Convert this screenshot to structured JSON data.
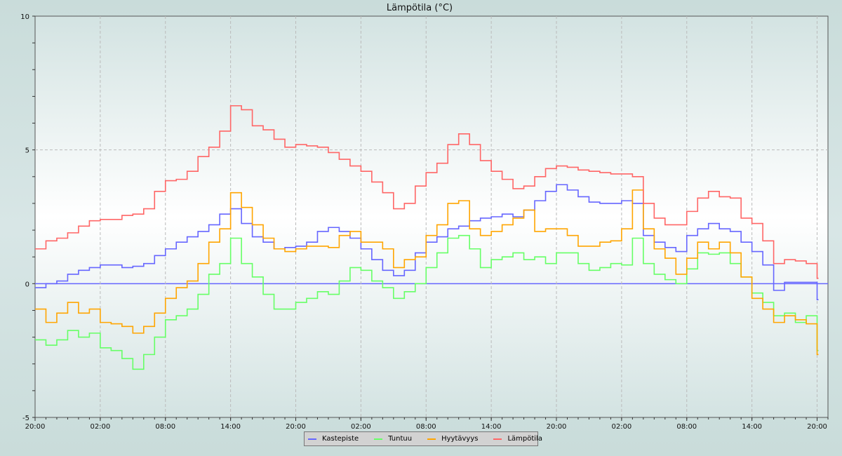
{
  "chart_data": {
    "type": "line",
    "title": "Lämpötila (°C)",
    "xlabel": "",
    "ylabel": "",
    "ylim": [
      -5,
      10
    ],
    "yticks": [
      "10",
      "5",
      "0",
      "-5"
    ],
    "xlim_hours": [
      0,
      73
    ],
    "xticks": [
      "20:00",
      "02:00",
      "08:00",
      "14:00",
      "20:00",
      "02:00",
      "08:00",
      "14:00",
      "20:00",
      "02:00",
      "08:00",
      "14:00",
      "20:00"
    ],
    "x_unit": "hours since first 20:00 (hourly samples)",
    "grid": true,
    "legend_position": "bottom-center",
    "series": [
      {
        "name": "Kastepiste",
        "color": "#6666ff",
        "values": [
          -0.15,
          0,
          0.1,
          0.35,
          0.5,
          0.6,
          0.7,
          0.7,
          0.6,
          0.65,
          0.75,
          1.05,
          1.3,
          1.55,
          1.75,
          1.95,
          2.2,
          2.6,
          2.8,
          2.25,
          1.75,
          1.55,
          1.3,
          1.35,
          1.4,
          1.55,
          1.95,
          2.1,
          1.95,
          1.7,
          1.3,
          0.9,
          0.5,
          0.3,
          0.5,
          1.15,
          1.55,
          1.75,
          2.05,
          2.15,
          2.35,
          2.45,
          2.5,
          2.6,
          2.5,
          2.75,
          3.1,
          3.45,
          3.7,
          3.5,
          3.25,
          3.05,
          3.0,
          3.0,
          3.1,
          3.0,
          1.8,
          1.55,
          1.35,
          1.2,
          1.8,
          2.05,
          2.25,
          2.05,
          1.95,
          1.55,
          1.2,
          0.7,
          -0.25,
          0.05,
          0.05,
          0.05,
          -0.6
        ]
      },
      {
        "name": "Tuntuu",
        "color": "#66ff66",
        "values": [
          -2.1,
          -2.3,
          -2.1,
          -1.75,
          -2.0,
          -1.85,
          -2.4,
          -2.5,
          -2.8,
          -3.2,
          -2.65,
          -2.0,
          -1.35,
          -1.2,
          -0.95,
          -0.4,
          0.35,
          0.75,
          1.7,
          0.75,
          0.25,
          -0.4,
          -0.95,
          -0.95,
          -0.7,
          -0.55,
          -0.3,
          -0.4,
          0.1,
          0.6,
          0.5,
          0.1,
          -0.15,
          -0.55,
          -0.3,
          0,
          0.6,
          1.15,
          1.7,
          1.8,
          1.3,
          0.6,
          0.9,
          1.0,
          1.15,
          0.9,
          1.0,
          0.75,
          1.15,
          1.15,
          0.75,
          0.5,
          0.6,
          0.75,
          0.7,
          1.7,
          0.75,
          0.35,
          0.15,
          0,
          0.55,
          1.15,
          1.1,
          1.15,
          0.75,
          0.25,
          -0.35,
          -0.7,
          -1.2,
          -1.1,
          -1.45,
          -1.2,
          -2.5
        ]
      },
      {
        "name": "Hyytävyys",
        "color": "#ffa500",
        "values": [
          -0.95,
          -1.45,
          -1.1,
          -0.7,
          -1.1,
          -0.95,
          -1.45,
          -1.5,
          -1.6,
          -1.85,
          -1.6,
          -1.1,
          -0.55,
          -0.15,
          0.1,
          0.75,
          1.55,
          2.05,
          3.4,
          2.85,
          2.2,
          1.7,
          1.3,
          1.2,
          1.3,
          1.4,
          1.4,
          1.35,
          1.8,
          1.95,
          1.55,
          1.55,
          1.3,
          0.6,
          0.9,
          1.0,
          1.8,
          2.2,
          3.0,
          3.1,
          2.05,
          1.8,
          1.95,
          2.2,
          2.45,
          2.75,
          1.95,
          2.05,
          2.05,
          1.8,
          1.4,
          1.4,
          1.55,
          1.6,
          2.05,
          3.5,
          2.05,
          1.3,
          0.95,
          0.35,
          0.95,
          1.55,
          1.3,
          1.55,
          1.15,
          0.25,
          -0.55,
          -0.95,
          -1.45,
          -1.2,
          -1.35,
          -1.5,
          -2.65
        ]
      },
      {
        "name": "Lämpötila",
        "color": "#ff6666",
        "values": [
          1.3,
          1.6,
          1.7,
          1.9,
          2.15,
          2.35,
          2.4,
          2.4,
          2.55,
          2.6,
          2.8,
          3.45,
          3.85,
          3.9,
          4.2,
          4.75,
          5.1,
          5.7,
          6.65,
          6.5,
          5.9,
          5.75,
          5.4,
          5.1,
          5.2,
          5.15,
          5.1,
          4.9,
          4.65,
          4.4,
          4.2,
          3.8,
          3.4,
          2.8,
          3.0,
          3.65,
          4.15,
          4.5,
          5.2,
          5.6,
          5.2,
          4.6,
          4.2,
          3.9,
          3.55,
          3.65,
          4.0,
          4.3,
          4.4,
          4.35,
          4.25,
          4.2,
          4.15,
          4.1,
          4.1,
          4.0,
          3.0,
          2.45,
          2.2,
          2.2,
          2.7,
          3.2,
          3.45,
          3.25,
          3.2,
          2.45,
          2.25,
          1.6,
          0.75,
          0.9,
          0.85,
          0.75,
          0.2
        ]
      }
    ]
  }
}
